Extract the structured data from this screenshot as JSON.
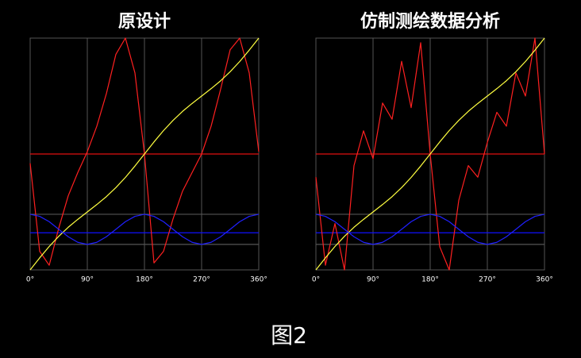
{
  "chart_data": [
    {
      "type": "line",
      "title": "原设计",
      "x": [
        0,
        15,
        30,
        45,
        60,
        75,
        90,
        105,
        120,
        135,
        150,
        165,
        180,
        195,
        210,
        225,
        240,
        255,
        270,
        285,
        300,
        315,
        330,
        345,
        360
      ],
      "xlim": [
        0,
        360
      ],
      "ylim": [
        0,
        100
      ],
      "xticks": [
        {
          "value": 0,
          "label": "0°"
        },
        {
          "value": 90,
          "label": "90°"
        },
        {
          "value": 180,
          "label": "180°"
        },
        {
          "value": 270,
          "label": "270°"
        },
        {
          "value": 360,
          "label": "360°"
        }
      ],
      "hlines": [
        {
          "value": 50,
          "color": "#e01010"
        },
        {
          "value": 24,
          "color": "#555555"
        },
        {
          "value": 16,
          "color": "#1010ff"
        },
        {
          "value": 11,
          "color": "#555555"
        }
      ],
      "grid": true,
      "series": [
        {
          "color": "#ff2020",
          "values": [
            46,
            8,
            2,
            18,
            32,
            42,
            51,
            62,
            76,
            93,
            100,
            85,
            50,
            3,
            8,
            22,
            34,
            42,
            50,
            62,
            78,
            95,
            100,
            85,
            51
          ]
        },
        {
          "color": "#ffff40",
          "values": [
            0,
            5.2,
            10.1,
            14.5,
            18.4,
            21.8,
            25,
            28.2,
            31.6,
            35.5,
            39.9,
            44.8,
            50,
            55.2,
            60.1,
            64.5,
            68.4,
            71.8,
            75,
            78.2,
            81.6,
            85.5,
            89.9,
            94.8,
            100
          ]
        },
        {
          "color": "#2020ff",
          "values": [
            24,
            23.1,
            20.8,
            17.5,
            14.3,
            11.9,
            11,
            11.9,
            14.3,
            17.5,
            20.8,
            23.1,
            24,
            23.1,
            20.8,
            17.5,
            14.3,
            11.9,
            11,
            11.9,
            14.3,
            17.5,
            20.8,
            23.1,
            24
          ]
        }
      ]
    },
    {
      "type": "line",
      "title": "仿制测绘数据分析",
      "x": [
        0,
        15,
        30,
        45,
        60,
        75,
        90,
        105,
        120,
        135,
        150,
        165,
        180,
        195,
        210,
        225,
        240,
        255,
        270,
        285,
        300,
        315,
        330,
        345,
        360
      ],
      "xlim": [
        0,
        360
      ],
      "ylim": [
        0,
        100
      ],
      "xticks": [
        {
          "value": 0,
          "label": "0°"
        },
        {
          "value": 90,
          "label": "90°"
        },
        {
          "value": 180,
          "label": "180°"
        },
        {
          "value": 270,
          "label": "270°"
        },
        {
          "value": 360,
          "label": "360°"
        }
      ],
      "hlines": [
        {
          "value": 50,
          "color": "#e01010"
        },
        {
          "value": 24,
          "color": "#555555"
        },
        {
          "value": 16,
          "color": "#1010ff"
        },
        {
          "value": 11,
          "color": "#555555"
        }
      ],
      "grid": true,
      "series": [
        {
          "color": "#ff2020",
          "values": [
            40,
            2,
            20,
            0,
            45,
            60,
            48,
            72,
            65,
            90,
            70,
            98,
            50,
            10,
            0,
            30,
            45,
            40,
            55,
            68,
            62,
            85,
            75,
            100,
            50
          ]
        },
        {
          "color": "#ffff40",
          "values": [
            0,
            5.2,
            10.1,
            14.5,
            18.4,
            21.8,
            25,
            28.2,
            31.6,
            35.5,
            39.9,
            44.8,
            50,
            55.2,
            60.1,
            64.5,
            68.4,
            71.8,
            75,
            78.2,
            81.6,
            85.5,
            89.9,
            94.8,
            100
          ]
        },
        {
          "color": "#2020ff",
          "values": [
            24,
            23.1,
            20.8,
            17.5,
            14.3,
            11.9,
            11,
            11.9,
            14.3,
            17.5,
            20.8,
            23.1,
            24,
            23.1,
            20.8,
            17.5,
            14.3,
            11.9,
            11,
            11.9,
            14.3,
            17.5,
            20.8,
            23.1,
            24
          ]
        }
      ]
    }
  ],
  "caption": "图2"
}
